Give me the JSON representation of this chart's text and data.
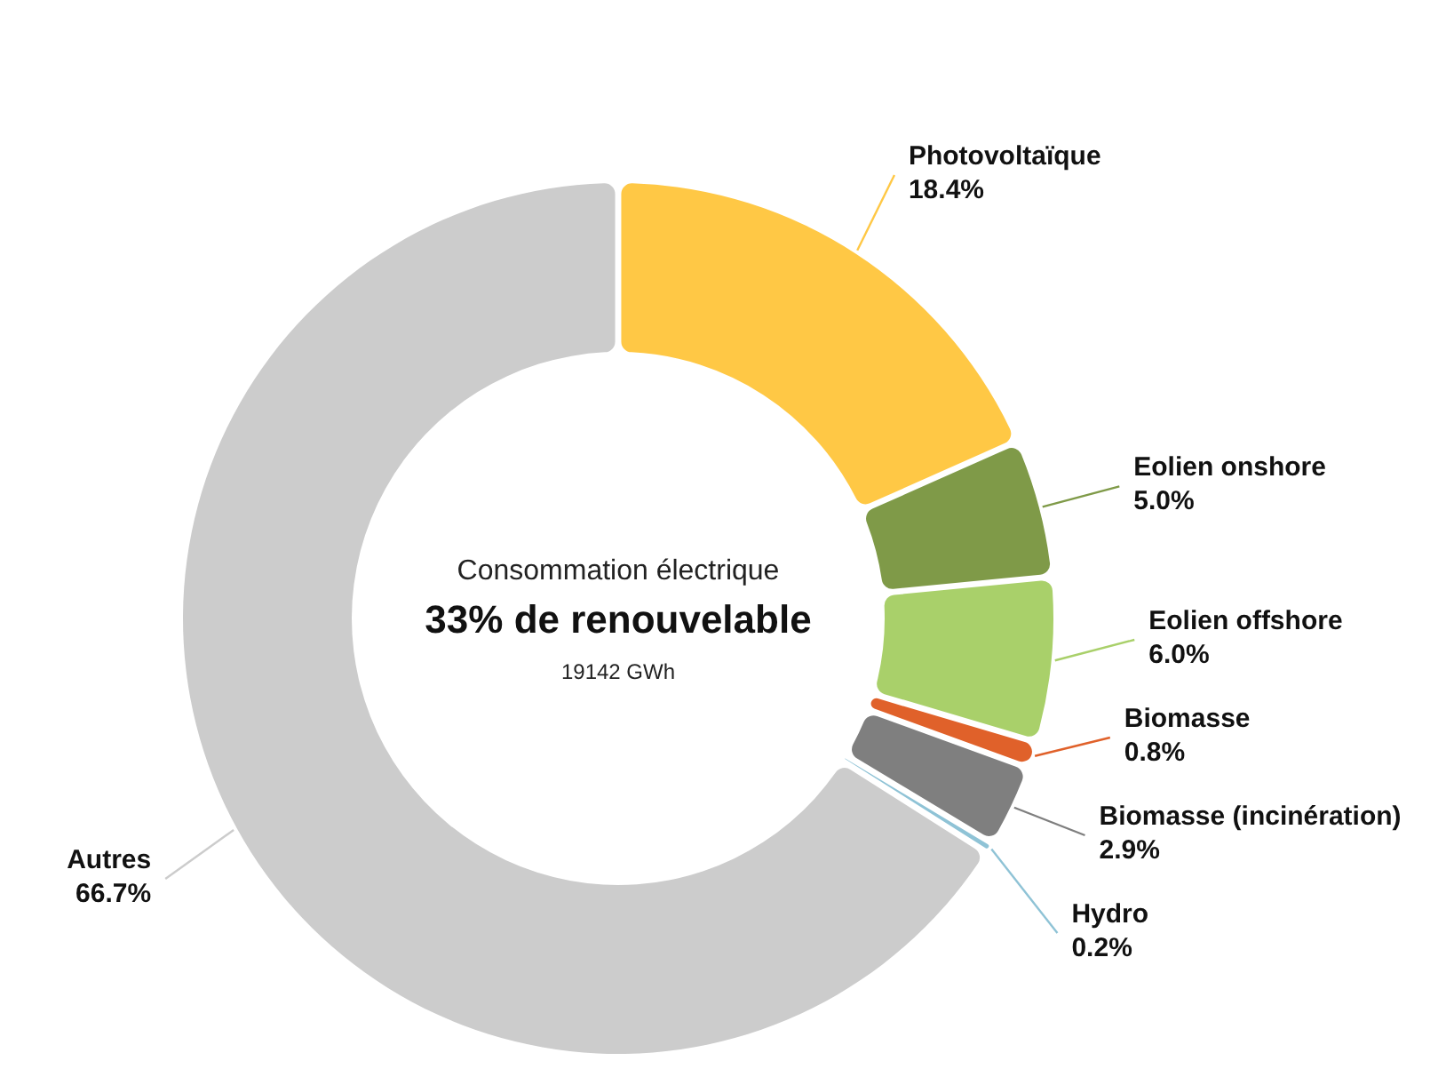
{
  "chart_data": {
    "type": "donut",
    "title": "Consommation électrique",
    "subtitle": "33% de renouvelable",
    "annotations": [
      "19142 GWh"
    ],
    "categories": [
      "Photovoltaïque",
      "Eolien onshore",
      "Eolien offshore",
      "Biomasse",
      "Biomasse (incinération)",
      "Hydro",
      "Autres"
    ],
    "values": [
      18.4,
      5.0,
      6.0,
      0.8,
      2.9,
      0.2,
      66.7
    ],
    "value_labels": [
      "18.4%",
      "5.0%",
      "6.0%",
      "0.8%",
      "2.9%",
      "0.2%",
      "66.7%"
    ],
    "colors": [
      "#ffc845",
      "#7f9a48",
      "#a9d06a",
      "#e0612a",
      "#7f7f7f",
      "#8fc3d6",
      "#cccccc"
    ]
  }
}
